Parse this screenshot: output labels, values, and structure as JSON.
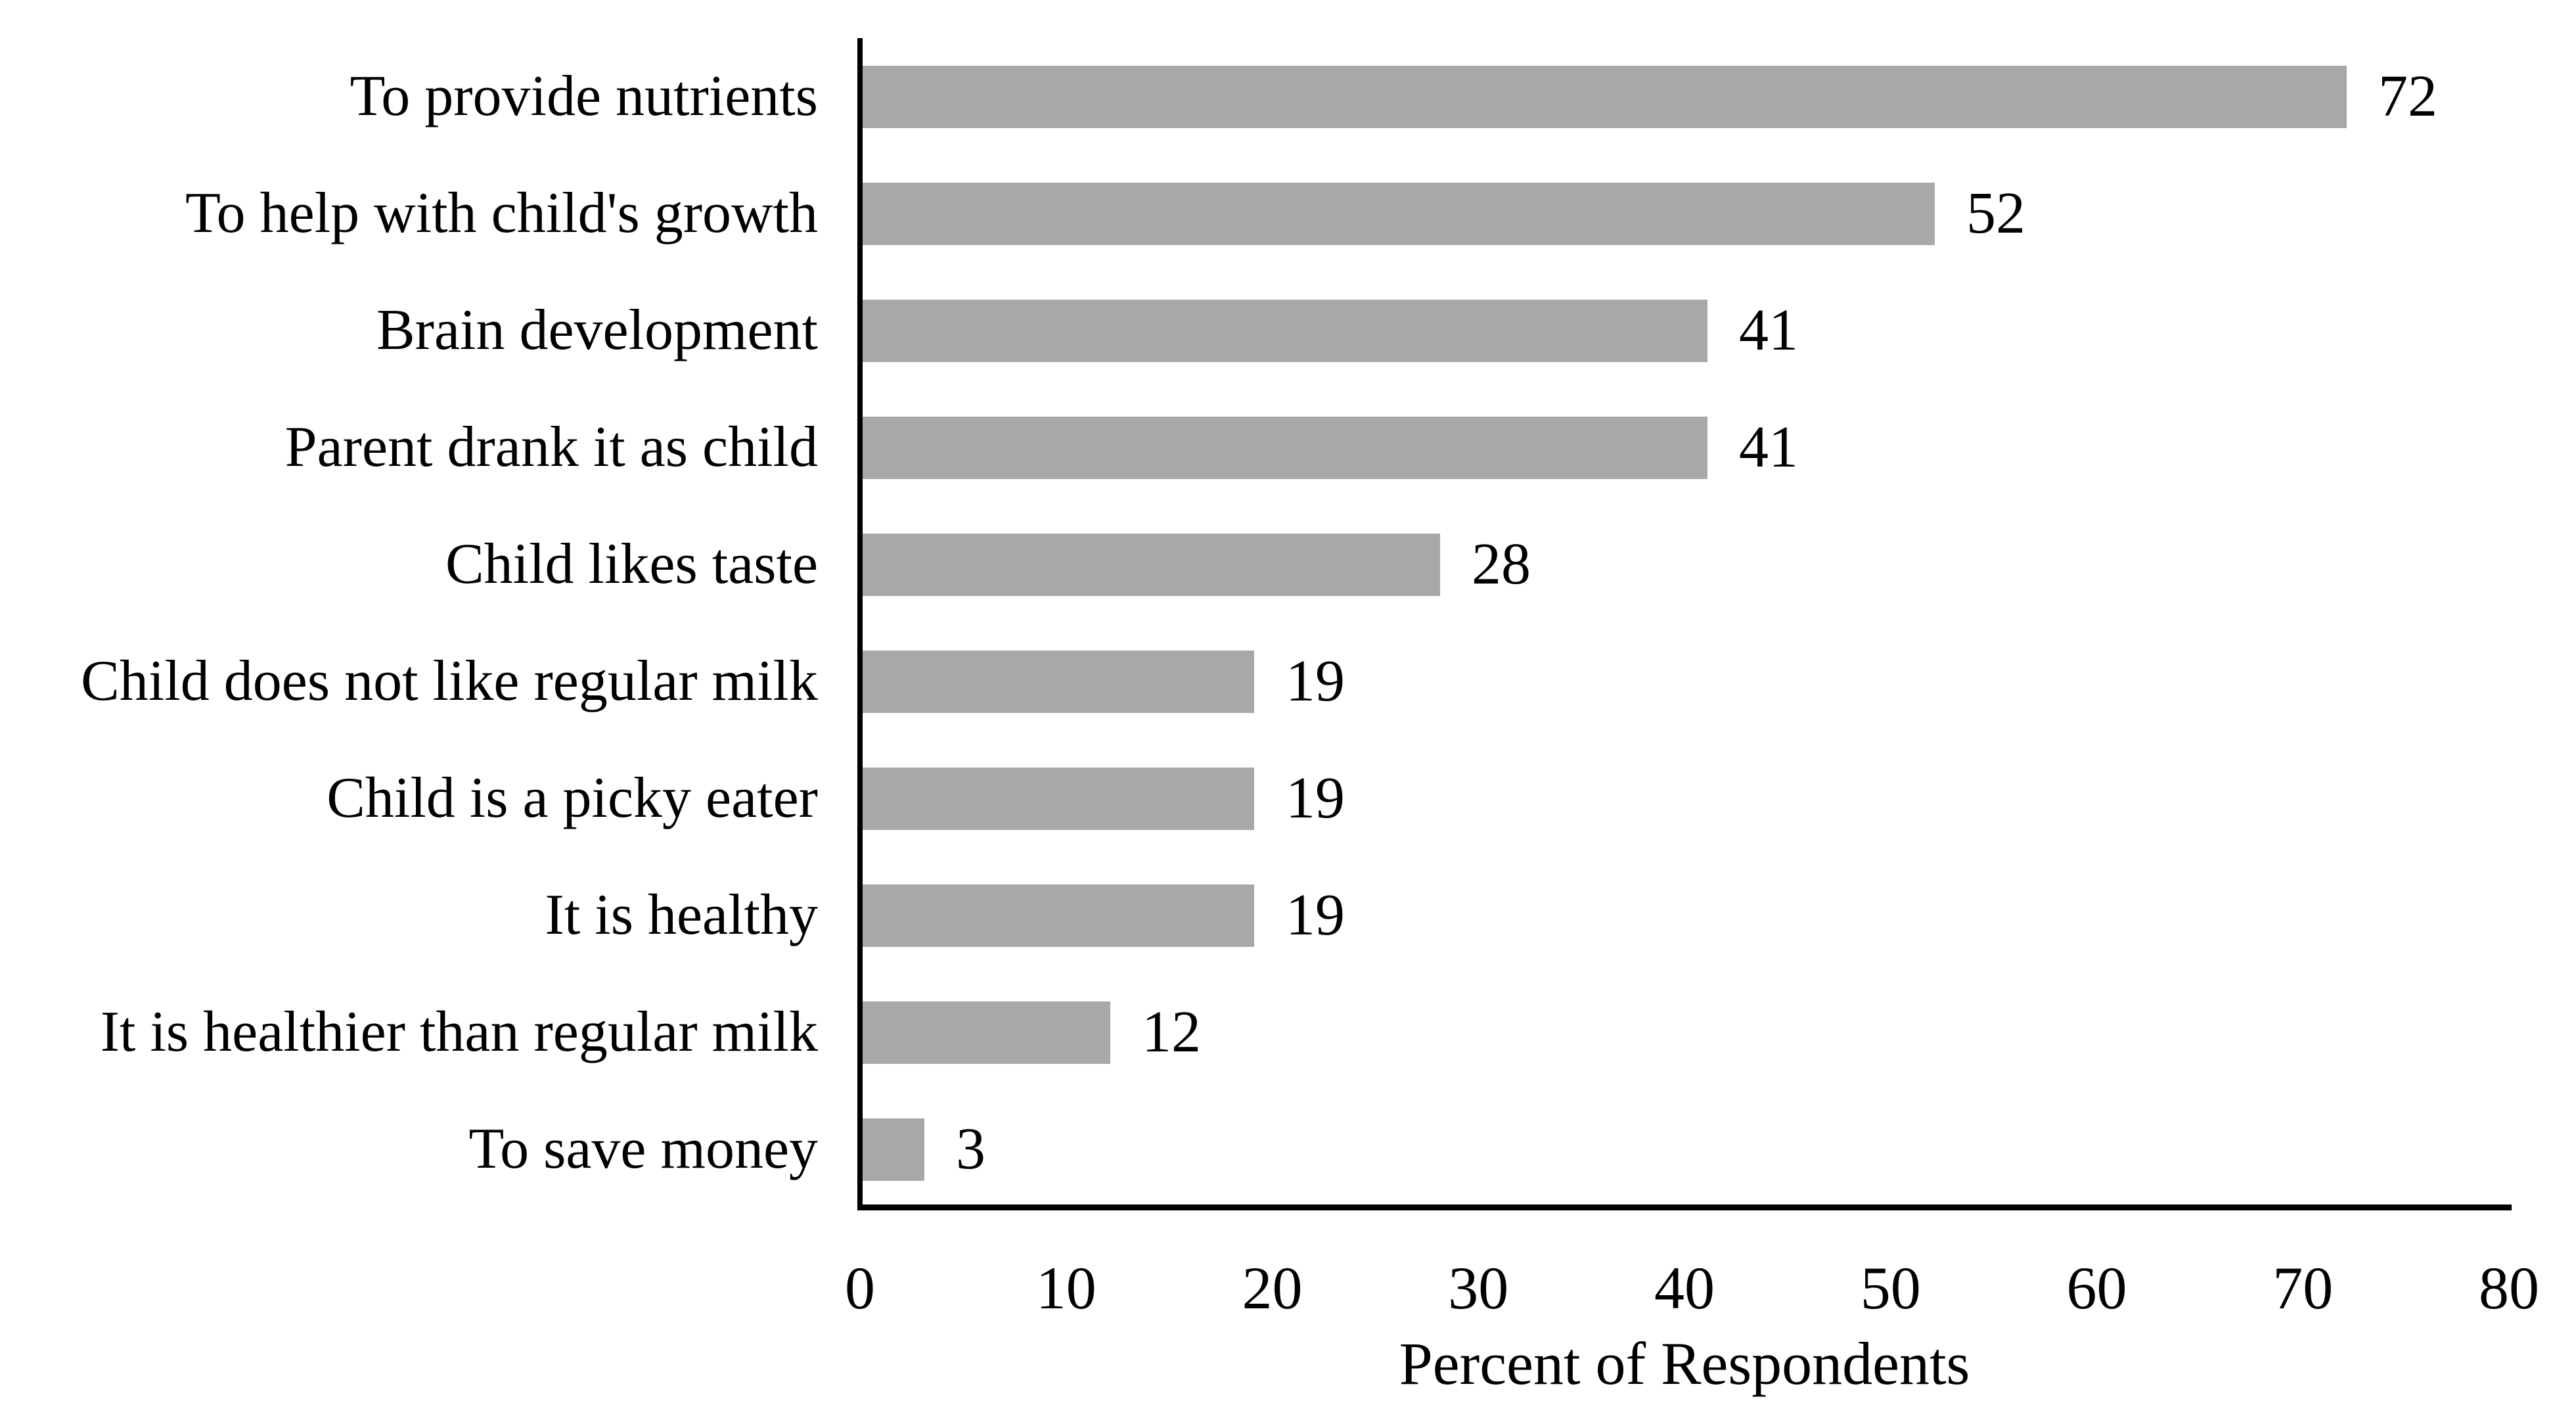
{
  "chart_data": {
    "type": "bar",
    "orientation": "horizontal",
    "categories": [
      "To provide nutrients",
      "To help with child's growth",
      "Brain development",
      "Parent drank it as child",
      "Child likes taste",
      "Child does not like regular milk",
      "Child is a picky eater",
      "It is healthy",
      "It is healthier than regular milk",
      "To save money"
    ],
    "values": [
      72,
      52,
      41,
      41,
      28,
      19,
      19,
      19,
      12,
      3
    ],
    "value_labels": [
      "72",
      "52",
      "41",
      "41",
      "28",
      "19",
      "19",
      "19",
      "12",
      "3"
    ],
    "xlabel": "Percent of Respondents",
    "xlim": [
      0,
      80
    ],
    "xticks": [
      "0",
      "10",
      "20",
      "30",
      "40",
      "50",
      "60",
      "70",
      "80"
    ],
    "grid": false,
    "legend": "none",
    "colors": {
      "bar": "#a8a8a8",
      "axis": "#000000",
      "text": "#000000",
      "background": "#ffffff"
    }
  }
}
